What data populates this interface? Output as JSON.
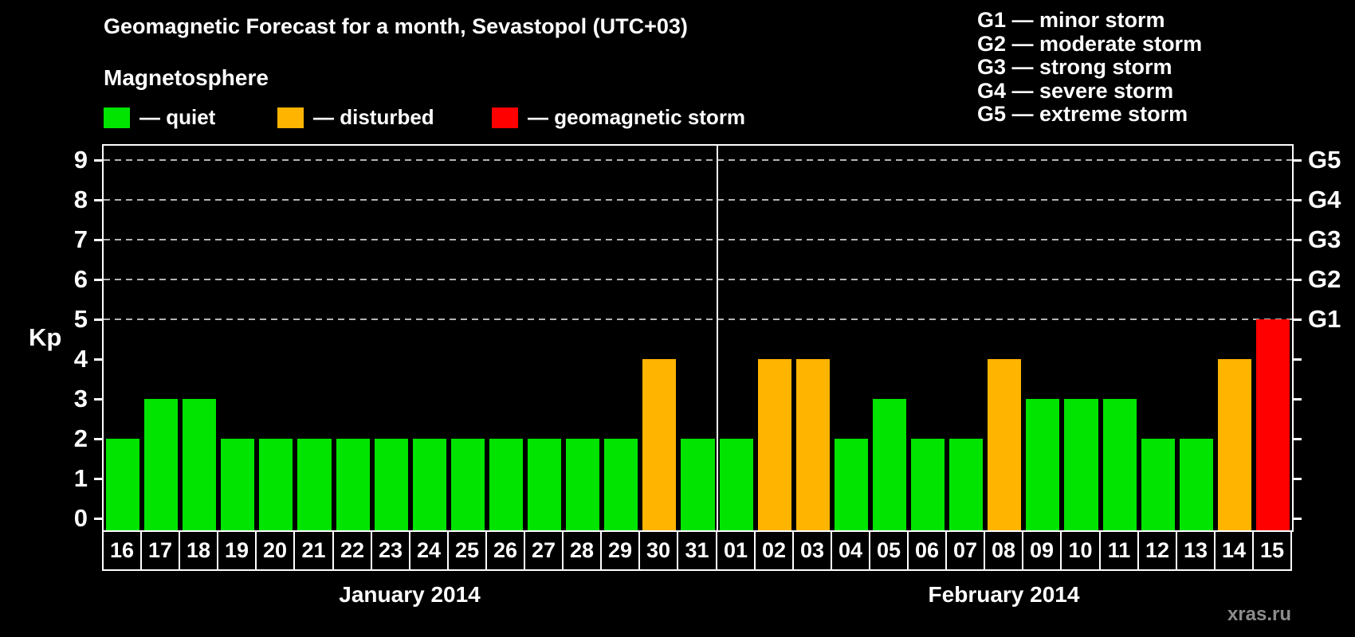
{
  "title": "Geomagnetic Forecast for a month, Sevastopol (UTC+03)",
  "watermark": "xras.ru",
  "kp_axis_label": "Kp",
  "magnetosphere_legend": {
    "title": "Magnetosphere",
    "items": [
      {
        "label": "— quiet",
        "state": "quiet",
        "color": "#00e400"
      },
      {
        "label": "— disturbed",
        "state": "disturbed",
        "color": "#ffb400"
      },
      {
        "label": "— geomagnetic storm",
        "state": "storm",
        "color": "#ff0000"
      }
    ]
  },
  "storm_scale": [
    "G1 — minor storm",
    "G2 — moderate storm",
    "G3 — strong storm",
    "G4 — severe storm",
    "G5 — extreme storm"
  ],
  "chart_data": {
    "type": "bar",
    "ylabel": "Kp",
    "ylim": [
      0,
      9
    ],
    "yticks": [
      0,
      1,
      2,
      3,
      4,
      5,
      6,
      7,
      8,
      9
    ],
    "gridlines": [
      5,
      6,
      7,
      8,
      9
    ],
    "grid_style": "dashed",
    "legend_position": "top",
    "right_axis": [
      {
        "level": 5,
        "label": "G1"
      },
      {
        "level": 6,
        "label": "G2"
      },
      {
        "level": 7,
        "label": "G3"
      },
      {
        "level": 8,
        "label": "G4"
      },
      {
        "level": 9,
        "label": "G5"
      }
    ],
    "state_colors": {
      "quiet": "#00e400",
      "disturbed": "#ffb400",
      "storm": "#ff0000"
    },
    "months": [
      {
        "label": "January 2014",
        "days": [
          "16",
          "17",
          "18",
          "19",
          "20",
          "21",
          "22",
          "23",
          "24",
          "25",
          "26",
          "27",
          "28",
          "29",
          "30",
          "31"
        ],
        "values": [
          2,
          3,
          3,
          2,
          2,
          2,
          2,
          2,
          2,
          2,
          2,
          2,
          2,
          2,
          4,
          2
        ],
        "states": [
          "quiet",
          "quiet",
          "quiet",
          "quiet",
          "quiet",
          "quiet",
          "quiet",
          "quiet",
          "quiet",
          "quiet",
          "quiet",
          "quiet",
          "quiet",
          "quiet",
          "disturbed",
          "quiet"
        ]
      },
      {
        "label": "February 2014",
        "days": [
          "01",
          "02",
          "03",
          "04",
          "05",
          "06",
          "07",
          "08",
          "09",
          "10",
          "11",
          "12",
          "13",
          "14",
          "15"
        ],
        "values": [
          2,
          4,
          4,
          2,
          3,
          2,
          2,
          4,
          3,
          3,
          3,
          2,
          2,
          4,
          5
        ],
        "states": [
          "quiet",
          "disturbed",
          "disturbed",
          "quiet",
          "quiet",
          "quiet",
          "quiet",
          "disturbed",
          "quiet",
          "quiet",
          "quiet",
          "quiet",
          "quiet",
          "disturbed",
          "storm"
        ]
      }
    ]
  }
}
